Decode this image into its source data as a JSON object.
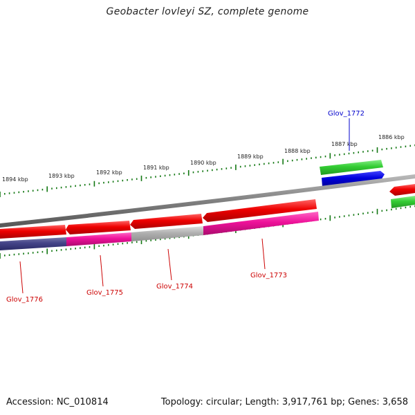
{
  "title": "Geobacter lovleyi SZ, complete genome",
  "footer": {
    "accession": "Accession: NC_010814",
    "topology": "Topology: circular; Length: 3,917,761 bp; Genes: 3,658"
  },
  "scale_labels": [
    "1894 kbp",
    "1893 kbp",
    "1892 kbp",
    "1891 kbp",
    "1890 kbp",
    "1889 kbp",
    "1888 kbp",
    "1887 kbp",
    "1886 kbp"
  ],
  "gene_labels": [
    {
      "text": "Glov_1772",
      "color": "#0000cc"
    },
    {
      "text": "Glov_1773",
      "color": "#cc0000"
    },
    {
      "text": "Glov_1774",
      "color": "#cc0000"
    },
    {
      "text": "Glov_1775",
      "color": "#cc0000"
    },
    {
      "text": "Glov_1776",
      "color": "#cc0000"
    }
  ],
  "colors": {
    "backbone": "#808080",
    "cds_red": "#ee0000",
    "gene_green": "#33cc33",
    "gene_blue": "#0000dd",
    "gene_magenta": "#ee1199",
    "gene_navy": "#444488",
    "gene_gray": "#b0b0b0",
    "tick_green": "#117711"
  }
}
